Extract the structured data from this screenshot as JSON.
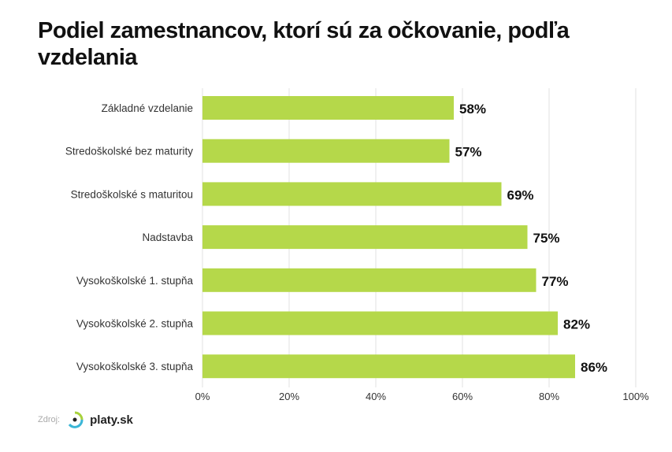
{
  "chart_data": {
    "type": "bar",
    "orientation": "horizontal",
    "title": "Podiel zamestnancov, ktorí sú za očkovanie, podľa vzdelania",
    "categories": [
      "Základné vzdelanie",
      "Stredoškolské bez maturity",
      "Stredoškolské s maturitou",
      "Nadstavba",
      "Vysokoškolské 1. stupňa",
      "Vysokoškolské 2. stupňa",
      "Vysokoškolské 3. stupňa"
    ],
    "values": [
      58,
      57,
      69,
      75,
      77,
      82,
      86
    ],
    "data_labels": [
      "58%",
      "57%",
      "69%",
      "75%",
      "77%",
      "82%",
      "86%"
    ],
    "xlim": [
      0,
      100
    ],
    "xticks": [
      0,
      20,
      40,
      60,
      80,
      100
    ],
    "xtick_labels": [
      "0%",
      "20%",
      "40%",
      "60%",
      "80%",
      "100%"
    ],
    "xlabel": "",
    "ylabel": "",
    "grid": true,
    "bar_color": "#b5d84a"
  },
  "source": {
    "label": "Zdroj:",
    "brand": "platy.sk"
  }
}
